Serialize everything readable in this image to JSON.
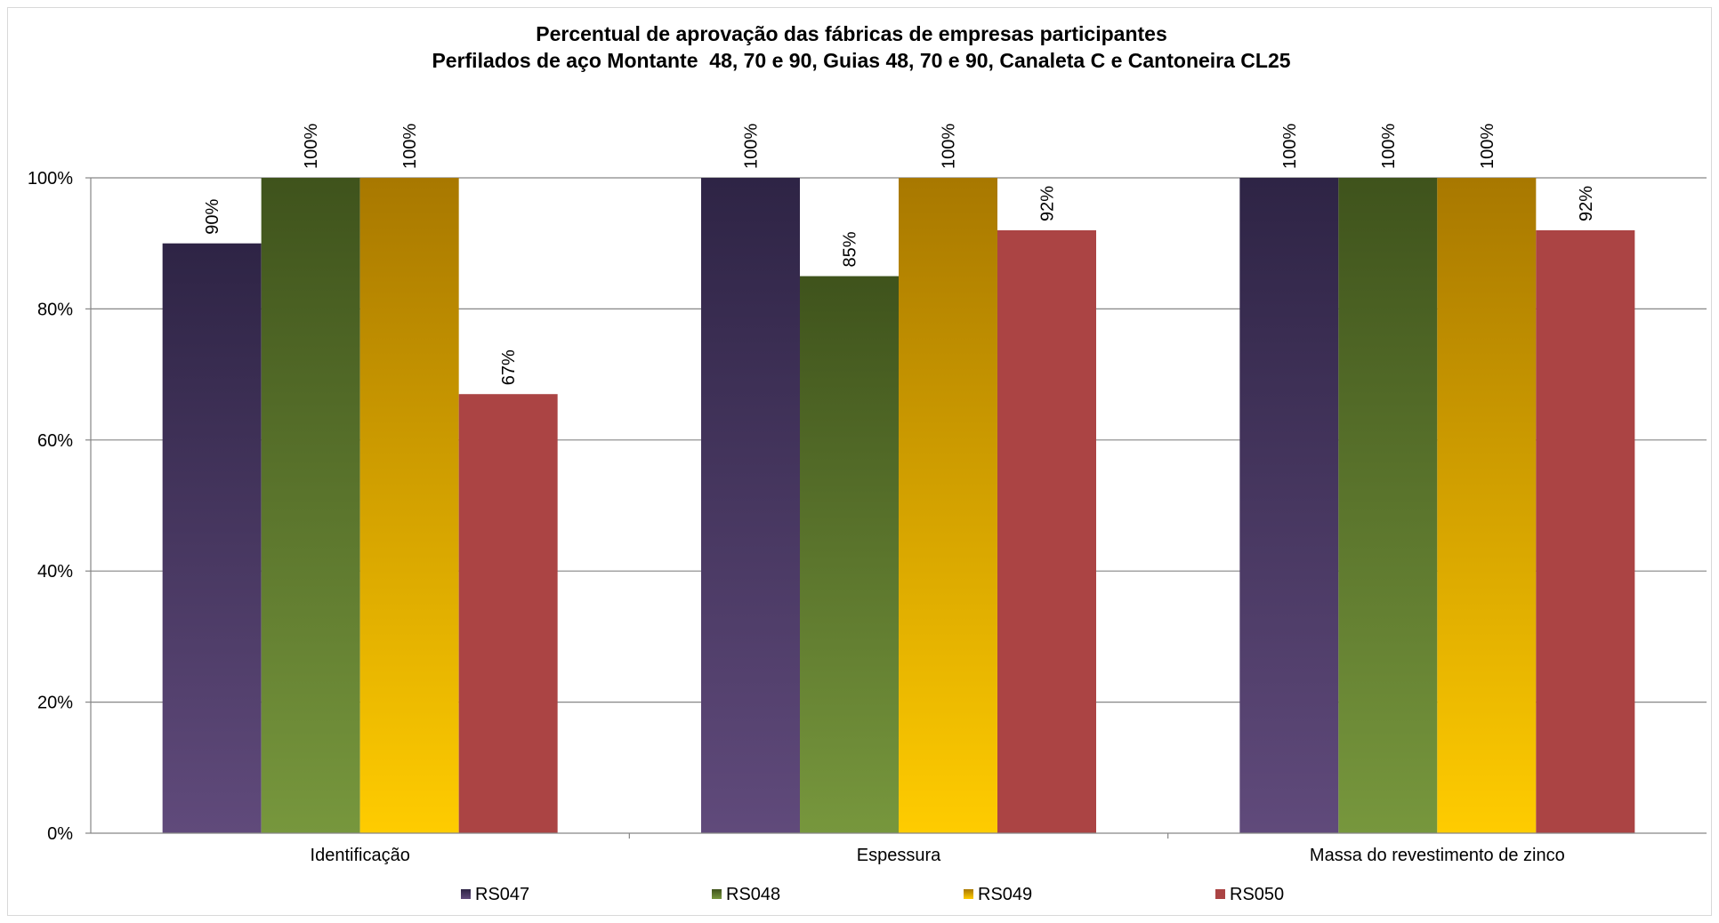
{
  "chart_data": {
    "type": "bar",
    "title": "Percentual de aprovação das fábricas de empresas participantes",
    "subtitle": "Perfilados de aço Montante  48, 70 e 90, Guias 48, 70 e 90, Canaleta C e Cantoneira CL25",
    "xlabel": "",
    "ylabel": "",
    "categories": [
      "Identificação",
      "Espessura",
      "Massa do revestimento de zinco"
    ],
    "series": [
      {
        "name": "RS047",
        "values": [
          90,
          100,
          100
        ],
        "labels": [
          "90%",
          "100%",
          "100%"
        ],
        "color_top": "#2e2445",
        "color_bottom": "#604a7b"
      },
      {
        "name": "RS048",
        "values": [
          100,
          85,
          100
        ],
        "labels": [
          "100%",
          "85%",
          "100%"
        ],
        "color_top": "#3f531c",
        "color_bottom": "#77973d"
      },
      {
        "name": "RS049",
        "values": [
          100,
          100,
          100
        ],
        "labels": [
          "100%",
          "100%",
          "100%"
        ],
        "color_top": "#a87800",
        "color_bottom": "#ffcc00"
      },
      {
        "name": "RS050",
        "values": [
          67,
          92,
          92
        ],
        "labels": [
          "67%",
          "92%",
          "92%"
        ],
        "color_top": "#ab4444",
        "color_bottom": "#ab4444"
      }
    ],
    "ylim": [
      0,
      100
    ],
    "yticks": [
      0,
      20,
      40,
      60,
      80,
      100
    ],
    "ytick_labels": [
      "0%",
      "20%",
      "40%",
      "60%",
      "80%",
      "100%"
    ],
    "grid": true,
    "legend_position": "bottom"
  }
}
